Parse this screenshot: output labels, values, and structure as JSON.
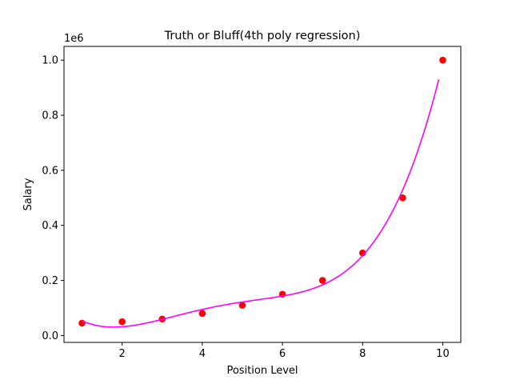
{
  "chart_data": {
    "type": "scatter",
    "title": "Truth or Bluff(4th poly regression)",
    "xlabel": "Position Level",
    "ylabel": "Salary",
    "y_offset_label": "1e6",
    "xlim": [
      0.55,
      10.45
    ],
    "ylim": [
      -25000,
      1050000
    ],
    "x_ticks": [
      2,
      4,
      6,
      8,
      10
    ],
    "x_tick_labels": [
      "2",
      "4",
      "6",
      "8",
      "10"
    ],
    "y_ticks": [
      0,
      200000,
      400000,
      600000,
      800000,
      1000000
    ],
    "y_tick_labels": [
      "0.0",
      "0.2",
      "0.4",
      "0.6",
      "0.8",
      "1.0"
    ],
    "grid": false,
    "legend": "none",
    "series": [
      {
        "type": "scatter",
        "color": "#ff0000",
        "x": [
          1,
          2,
          3,
          4,
          5,
          6,
          7,
          8,
          9,
          10
        ],
        "y": [
          45000,
          50000,
          60000,
          80000,
          110000,
          150000,
          200000,
          300000,
          500000,
          1000000
        ]
      },
      {
        "type": "line",
        "color": "#ff00ff",
        "x_range": [
          1,
          9.9
        ],
        "poly_coefficients": [
          184166.67,
          -211002.33,
          94765.44,
          -15463.29,
          890.15
        ]
      }
    ]
  }
}
